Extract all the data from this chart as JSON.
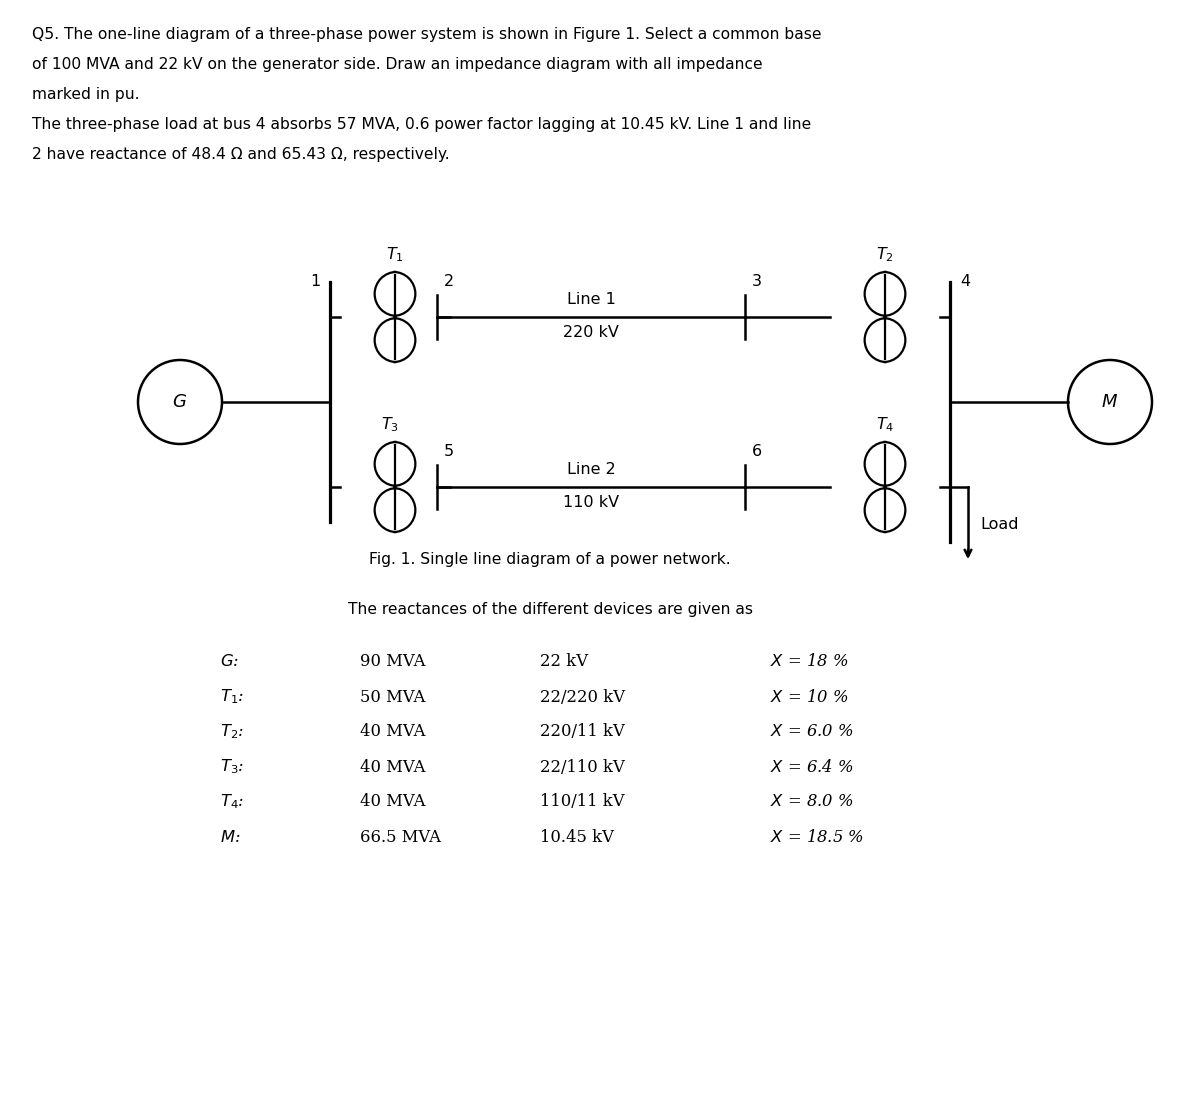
{
  "fig_caption": "Fig. 1. Single line diagram of a power network.",
  "reactance_header": "The reactances of the different devices are given as",
  "bg_color": "#ffffff",
  "text_color": "#000000",
  "line_color": "#000000",
  "header_lines": [
    "Q5. The one-line diagram of a three-phase power system is shown in Figure 1. Select a common base",
    "of 100 MVA and 22 kV on the generator side. Draw an impedance diagram with all impedance",
    "marked in pu.",
    "The three-phase load at bus 4 absorbs 57 MVA, 0.6 power factor lagging at 10.45 kV. Line 1 and line",
    "2 have reactance of 48.4 Ω and 65.43 Ω, respectively."
  ],
  "labels_italic": [
    "G:",
    "T1:",
    "T2:",
    "T3:",
    "T4:",
    "M:"
  ],
  "labels_mva": [
    "90 MVA",
    "50 MVA",
    "40 MVA",
    "40 MVA",
    "40 MVA",
    "66.5 MVA"
  ],
  "labels_kv": [
    "22 kV",
    "22/220 kV",
    "220/11 kV",
    "22/110 kV",
    "110/11 kV",
    "10.45 kV"
  ],
  "labels_X": [
    "X = 18 %",
    "X = 10 %",
    "X = 6.0 %",
    "X = 6.4 %",
    "X = 8.0 %",
    "X = 18.5 %"
  ]
}
